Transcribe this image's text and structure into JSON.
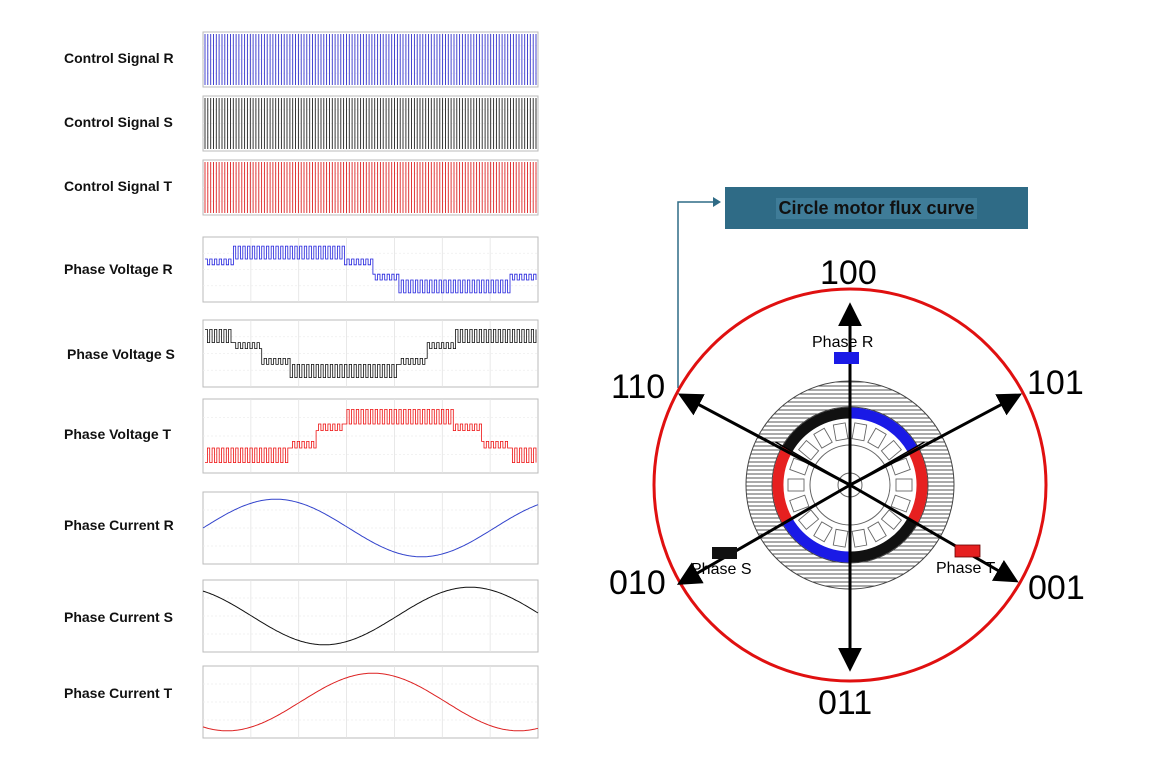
{
  "rows": [
    {
      "label": "Control Signal R",
      "kind": "pwm",
      "color": "#3333cc"
    },
    {
      "label": "Control Signal S",
      "kind": "pwm",
      "color": "#222222"
    },
    {
      "label": "Control Signal T",
      "kind": "pwm",
      "color": "#dd2222"
    },
    {
      "label": "Phase Voltage R",
      "kind": "voltage",
      "color": "#2222dd",
      "phase_deg": 0
    },
    {
      "label": "Phase Voltage S",
      "kind": "voltage",
      "color": "#111111",
      "phase_deg": 120
    },
    {
      "label": "Phase Voltage T",
      "kind": "voltage",
      "color": "#ee1111",
      "phase_deg": 240
    },
    {
      "label": "Phase Current R",
      "kind": "current",
      "color": "#3344cc",
      "phase_deg": 0
    },
    {
      "label": "Phase Current S",
      "kind": "current",
      "color": "#111111",
      "phase_deg": 120
    },
    {
      "label": "Phase Current T",
      "kind": "current",
      "color": "#dd2222",
      "phase_deg": 240
    }
  ],
  "diagram": {
    "title": "Circle motor flux curve",
    "directions": {
      "top": "100",
      "upper_right": "101",
      "lower_right": "001",
      "bottom": "011",
      "lower_left": "010",
      "upper_left": "110"
    },
    "phases": {
      "r": {
        "label": "Phase R",
        "color": "#1a1ae6"
      },
      "s": {
        "label": "Phase S",
        "color": "#111111"
      },
      "t": {
        "label": "Phase T",
        "color": "#e62020"
      }
    },
    "colors": {
      "circle": "#e01010",
      "title_bg": "#2f6b86",
      "connector": "#2f6b86"
    }
  }
}
